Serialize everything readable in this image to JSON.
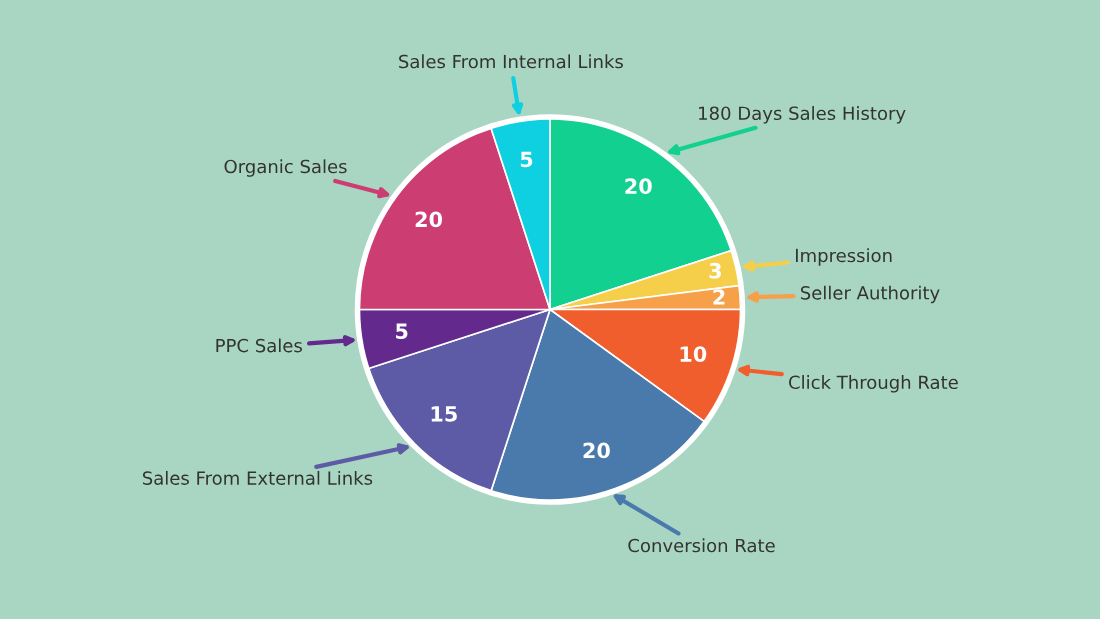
{
  "chart_data": {
    "type": "pie",
    "categories": [
      "180 Days Sales History",
      "Impression",
      "Seller Authority",
      "Click Through Rate",
      "Conversion Rate",
      "Sales From External Links",
      "PPC Sales",
      "Organic Sales",
      "Sales From Internal Links"
    ],
    "values": [
      20,
      3,
      2,
      10,
      20,
      15,
      5,
      20,
      5
    ],
    "colors": [
      "#12d08f",
      "#f5cf4a",
      "#f6a04a",
      "#f05e2e",
      "#4a7aab",
      "#5d5aa6",
      "#63298d",
      "#cc3d72",
      "#0fd0e0"
    ],
    "data_labels": true
  }
}
